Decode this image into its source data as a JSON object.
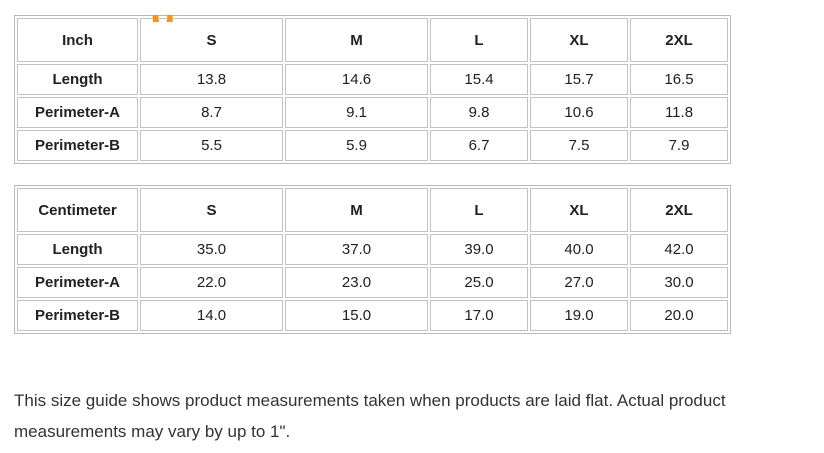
{
  "accent_color": "#f6921e",
  "border_color": "#c2c2c2",
  "heading_fragment": "g",
  "tables": [
    {
      "unit_header": "Inch",
      "size_headers": [
        "S",
        "M",
        "L",
        "XL",
        "2XL"
      ],
      "rows": [
        {
          "label": "Length",
          "values": [
            "13.8",
            "14.6",
            "15.4",
            "15.7",
            "16.5"
          ]
        },
        {
          "label": "Perimeter-A",
          "values": [
            "8.7",
            "9.1",
            "9.8",
            "10.6",
            "11.8"
          ]
        },
        {
          "label": "Perimeter-B",
          "values": [
            "5.5",
            "5.9",
            "6.7",
            "7.5",
            "7.9"
          ]
        }
      ]
    },
    {
      "unit_header": "Centimeter",
      "size_headers": [
        "S",
        "M",
        "L",
        "XL",
        "2XL"
      ],
      "rows": [
        {
          "label": "Length",
          "values": [
            "35.0",
            "37.0",
            "39.0",
            "40.0",
            "42.0"
          ]
        },
        {
          "label": "Perimeter-A",
          "values": [
            "22.0",
            "23.0",
            "25.0",
            "27.0",
            "30.0"
          ]
        },
        {
          "label": "Perimeter-B",
          "values": [
            "14.0",
            "15.0",
            "17.0",
            "19.0",
            "20.0"
          ]
        }
      ]
    }
  ],
  "note": "This size guide shows product measurements taken when products are laid flat. Actual product measurements may vary by up to 1\"."
}
